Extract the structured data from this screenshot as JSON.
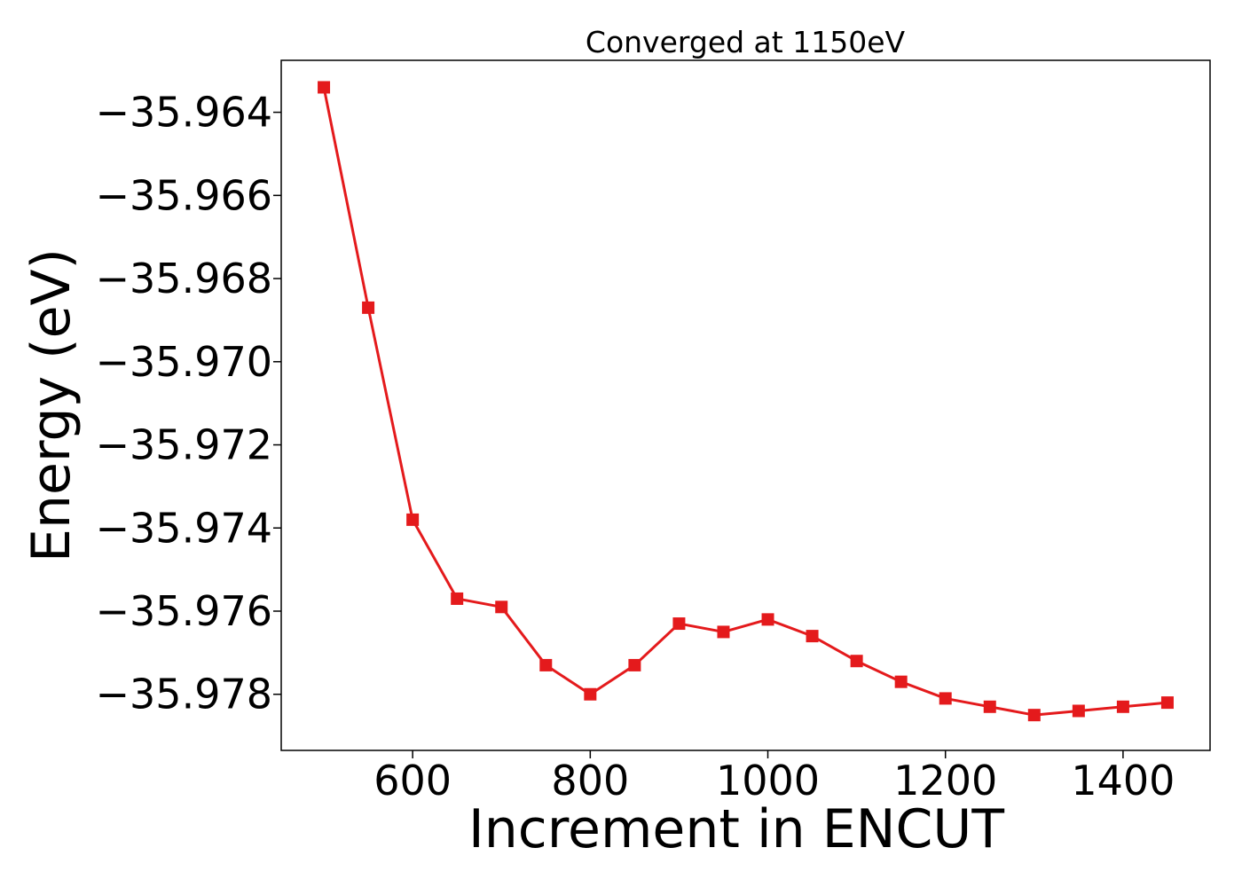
{
  "chart_data": {
    "type": "line",
    "title": "Converged at 1150eV",
    "xlabel": "Increment in ENCUT",
    "ylabel": "Energy (eV)",
    "xlim": [
      452,
      1498
    ],
    "ylim": [
      -35.97935,
      -35.96275
    ],
    "x_ticks": [
      600,
      800,
      1000,
      1200,
      1400
    ],
    "x_tick_labels": [
      "600",
      "800",
      "1000",
      "1200",
      "1400"
    ],
    "y_ticks": [
      -35.964,
      -35.966,
      -35.968,
      -35.97,
      -35.972,
      -35.974,
      -35.976,
      -35.978
    ],
    "y_tick_labels": [
      "−35.964",
      "−35.966",
      "−35.968",
      "−35.970",
      "−35.972",
      "−35.974",
      "−35.976",
      "−35.978"
    ],
    "grid": false,
    "series": [
      {
        "color": "#e41a1c",
        "marker": "square",
        "x": [
          500,
          550,
          600,
          650,
          700,
          750,
          800,
          850,
          900,
          950,
          1000,
          1050,
          1100,
          1150,
          1200,
          1250,
          1300,
          1350,
          1400,
          1450
        ],
        "y": [
          -35.9634,
          -35.9687,
          -35.9738,
          -35.9757,
          -35.9759,
          -35.9773,
          -35.978,
          -35.9773,
          -35.9763,
          -35.9765,
          -35.9762,
          -35.9766,
          -35.9772,
          -35.9777,
          -35.9781,
          -35.9783,
          -35.9785,
          -35.9784,
          -35.9783,
          -35.9782
        ]
      }
    ]
  }
}
